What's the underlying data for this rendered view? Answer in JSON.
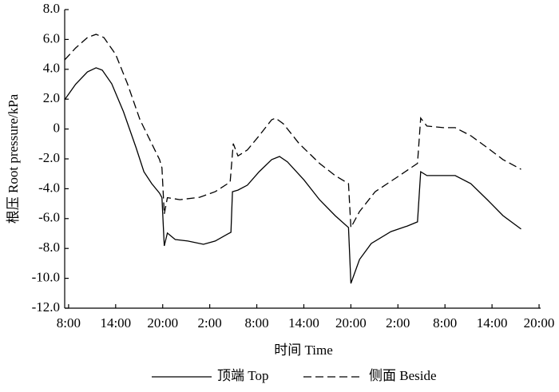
{
  "chart_data": {
    "type": "line",
    "x_label": "时间 Time",
    "y_label": "根压 Root pressure/kPa",
    "xlim": [
      -0.5,
      60.2
    ],
    "xticks": [
      {
        "value": 0,
        "label": "8:00"
      },
      {
        "value": 6,
        "label": "14:00"
      },
      {
        "value": 12,
        "label": "20:00"
      },
      {
        "value": 18,
        "label": "2:00"
      },
      {
        "value": 24,
        "label": "8:00"
      },
      {
        "value": 30,
        "label": "14:00"
      },
      {
        "value": 36,
        "label": "20:00"
      },
      {
        "value": 42,
        "label": "2:00"
      },
      {
        "value": 48,
        "label": "8:00"
      },
      {
        "value": 54,
        "label": "14:00"
      },
      {
        "value": 60,
        "label": "20:00"
      }
    ],
    "ylim": [
      -12,
      8
    ],
    "yticks": [
      {
        "value": 8,
        "label": "8.0"
      },
      {
        "value": 6,
        "label": "6.0"
      },
      {
        "value": 4,
        "label": "4.0"
      },
      {
        "value": 2,
        "label": "2.0"
      },
      0,
      {
        "value": -2,
        "label": "-2.0"
      },
      {
        "value": -4,
        "label": "-4.0"
      },
      {
        "value": -6,
        "label": "-6.0"
      },
      {
        "value": -8,
        "label": "-8.0"
      },
      {
        "value": -10,
        "label": "-10.0"
      },
      {
        "value": -12,
        "label": "-12.0"
      }
    ],
    "legend": "bottom",
    "series": [
      {
        "name": "顶端 Top",
        "color": "#000000",
        "dash": "solid",
        "x": [
          -0.5,
          0.9,
          2.4,
          3.5,
          4.3,
          5.5,
          7.0,
          8.6,
          9.6,
          10.6,
          11.6,
          11.9,
          12.2,
          12.6,
          13.6,
          15.2,
          17.2,
          18.7,
          20.3,
          20.7,
          20.9,
          21.6,
          22.8,
          24.3,
          25.9,
          26.9,
          27.9,
          30.0,
          32.0,
          34.0,
          35.7,
          36.0,
          37.1,
          38.6,
          41.1,
          43.2,
          44.5,
          44.9,
          45.7,
          47.8,
          49.3,
          51.3,
          53.4,
          55.4,
          57.7
        ],
        "values": [
          1.96,
          3.0,
          3.83,
          4.1,
          3.94,
          3.03,
          1.16,
          -1.25,
          -2.86,
          -3.66,
          -4.3,
          -4.6,
          -7.83,
          -6.97,
          -7.4,
          -7.5,
          -7.72,
          -7.5,
          -7.03,
          -6.92,
          -4.2,
          -4.09,
          -3.76,
          -2.86,
          -2.05,
          -1.84,
          -2.2,
          -3.4,
          -4.73,
          -5.8,
          -6.6,
          -10.34,
          -8.74,
          -7.67,
          -6.87,
          -6.5,
          -6.22,
          -2.86,
          -3.12,
          -3.12,
          -3.12,
          -3.66,
          -4.73,
          -5.8,
          -6.7
        ]
      },
      {
        "name": "侧面 Beside",
        "color": "#000000",
        "dash": "dashed",
        "x": [
          -0.5,
          0.9,
          2.4,
          3.5,
          4.5,
          6.0,
          7.5,
          9.1,
          10.6,
          11.6,
          11.9,
          12.2,
          12.6,
          14.2,
          16.7,
          18.7,
          20.6,
          21.0,
          21.6,
          22.8,
          24.3,
          25.9,
          26.4,
          27.4,
          29.4,
          32.0,
          34.0,
          35.7,
          36.0,
          37.1,
          39.1,
          42.2,
          44.5,
          44.9,
          45.7,
          47.8,
          49.3,
          51.3,
          53.4,
          55.4,
          57.7
        ],
        "values": [
          4.63,
          5.43,
          6.13,
          6.34,
          6.13,
          5.0,
          3.03,
          0.62,
          -0.98,
          -2.05,
          -2.6,
          -5.7,
          -4.6,
          -4.73,
          -4.57,
          -4.2,
          -3.55,
          -0.98,
          -1.8,
          -1.4,
          -0.45,
          0.62,
          0.73,
          0.35,
          -0.98,
          -2.3,
          -3.12,
          -3.66,
          -6.6,
          -5.53,
          -4.2,
          -3.12,
          -2.3,
          0.73,
          0.2,
          0.09,
          0.09,
          -0.45,
          -1.25,
          -2.05,
          -2.7
        ]
      }
    ]
  }
}
